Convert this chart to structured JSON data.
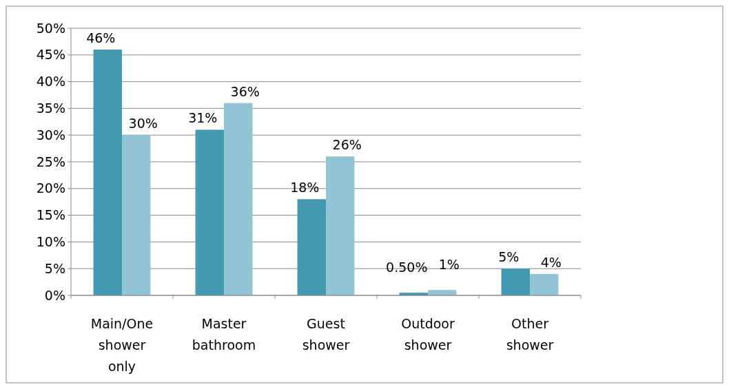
{
  "chart_data": {
    "type": "bar",
    "categories": [
      "Main/One shower only",
      "Master bathroom",
      "Guest shower",
      "Outdoor shower",
      "Other shower"
    ],
    "series": [
      {
        "color": "#4299b0",
        "values": [
          46,
          31,
          18,
          0.5,
          5
        ],
        "value_labels": [
          "46%",
          "31%",
          "18%",
          "0.50%",
          "5%"
        ]
      },
      {
        "color": "#93c4d5",
        "values": [
          30,
          36,
          26,
          1,
          4
        ],
        "value_labels": [
          "30%",
          "36%",
          "26%",
          "1%",
          "4%"
        ]
      }
    ],
    "ylim": [
      0,
      50
    ],
    "yticks": [
      {
        "value": 0,
        "label": "0%"
      },
      {
        "value": 5,
        "label": "5%"
      },
      {
        "value": 10,
        "label": "10%"
      },
      {
        "value": 15,
        "label": "15%"
      },
      {
        "value": 20,
        "label": "20%"
      },
      {
        "value": 25,
        "label": "25%"
      },
      {
        "value": 30,
        "label": "30%"
      },
      {
        "value": 35,
        "label": "35%"
      },
      {
        "value": 40,
        "label": "40%"
      },
      {
        "value": 45,
        "label": "45%"
      },
      {
        "value": 50,
        "label": "50%"
      }
    ],
    "grid": "y"
  }
}
